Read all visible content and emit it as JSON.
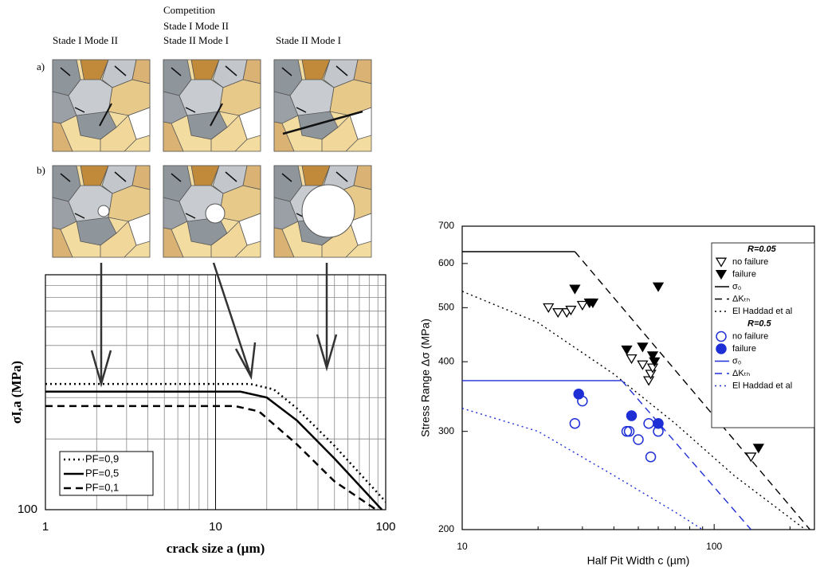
{
  "illustration": {
    "columns": [
      [
        "Stade I Mode II"
      ],
      [
        "Competition",
        "Stade I Mode II",
        "Stade II Mode I"
      ],
      [
        "Stade II Mode I"
      ]
    ],
    "rows": [
      "a)",
      "b)"
    ]
  },
  "chart_data": [
    {
      "type": "line",
      "xlabel": "crack size a (µm)",
      "ylabel": "σI,a (MPa)",
      "xscale": "log",
      "yscale": "log",
      "xlim": [
        1,
        100
      ],
      "ylim": [
        100,
        1000
      ],
      "xticks": [
        1,
        10,
        100
      ],
      "yticks": [
        100
      ],
      "grid": true,
      "legend": "lower left",
      "series": [
        {
          "name": "PF=0,9",
          "color": "#000000",
          "dash": "dotted",
          "x": [
            1,
            16,
            22,
            30,
            50,
            100
          ],
          "values": [
            343,
            343,
            325,
            270,
            187,
            108
          ]
        },
        {
          "name": "PF=0,5",
          "color": "#000000",
          "dash": "solid",
          "x": [
            1,
            14,
            20,
            30,
            50,
            95
          ],
          "values": [
            318,
            318,
            300,
            240,
            165,
            100
          ]
        },
        {
          "name": "PF=0,1",
          "color": "#000000",
          "dash": "dashed",
          "x": [
            1,
            13,
            18,
            30,
            50,
            88
          ],
          "values": [
            276,
            276,
            262,
            190,
            132,
            100
          ]
        }
      ]
    },
    {
      "type": "scatter",
      "xlabel": "Half Pit Width c (µm)",
      "ylabel": "Stress Range Δσ (MPa)",
      "xscale": "log",
      "yscale": "log",
      "xlim": [
        10,
        250
      ],
      "ylim": [
        200,
        700
      ],
      "xticks": [
        10,
        100
      ],
      "yticks": [
        200,
        300,
        400,
        500,
        600,
        700
      ],
      "legend": "upper right",
      "groups": [
        {
          "title": "R=0.05",
          "series": [
            {
              "name": "no failure",
              "color": "#000000",
              "marker": "triangle-down-open",
              "x": [
                22,
                24,
                26,
                27,
                30,
                47,
                52,
                55,
                56,
                57,
                140
              ],
              "values": [
                500,
                490,
                490,
                495,
                505,
                405,
                395,
                370,
                380,
                390,
                270
              ]
            },
            {
              "name": "failure",
              "color": "#000000",
              "marker": "triangle-down-filled",
              "x": [
                28,
                32,
                33,
                45,
                52,
                57,
                58,
                60,
                150
              ],
              "values": [
                540,
                510,
                510,
                420,
                425,
                410,
                400,
                545,
                280
              ]
            },
            {
              "name": "σ₀",
              "color": "#000000",
              "dash": "solid",
              "x": [
                10,
                28
              ],
              "values": [
                630,
                630
              ]
            },
            {
              "name": "ΔKₜₕ",
              "color": "#000000",
              "dash": "dashed",
              "x": [
                28,
                240
              ],
              "values": [
                630,
                200
              ]
            },
            {
              "name": "El Haddad et al",
              "color": "#000000",
              "dash": "dotted",
              "x": [
                10,
                20,
                40,
                70,
                120,
                230
              ],
              "values": [
                535,
                470,
                380,
                310,
                250,
                200
              ]
            }
          ]
        },
        {
          "title": "R=0.5",
          "series": [
            {
              "name": "no failure",
              "color": "#1f2fd6",
              "marker": "circle-open",
              "x": [
                28,
                30,
                45,
                46,
                50,
                55,
                56,
                60
              ],
              "values": [
                310,
                340,
                300,
                300,
                290,
                310,
                270,
                300
              ]
            },
            {
              "name": "failure",
              "color": "#1f2fd6",
              "marker": "circle-filled",
              "x": [
                29,
                47,
                60
              ],
              "values": [
                350,
                320,
                310
              ]
            },
            {
              "name": "σ₀",
              "color": "#1f2fd6",
              "dash": "solid",
              "x": [
                10,
                43
              ],
              "values": [
                370,
                370
              ]
            },
            {
              "name": "ΔKₜₕ",
              "color": "#1f2fd6",
              "dash": "dashed",
              "x": [
                43,
                140
              ],
              "values": [
                370,
                200
              ]
            },
            {
              "name": "El Haddad et al",
              "color": "#1f2fd6",
              "dash": "dotted",
              "x": [
                10,
                20,
                40,
                70,
                90
              ],
              "values": [
                330,
                300,
                250,
                215,
                200
              ]
            }
          ]
        }
      ]
    }
  ]
}
